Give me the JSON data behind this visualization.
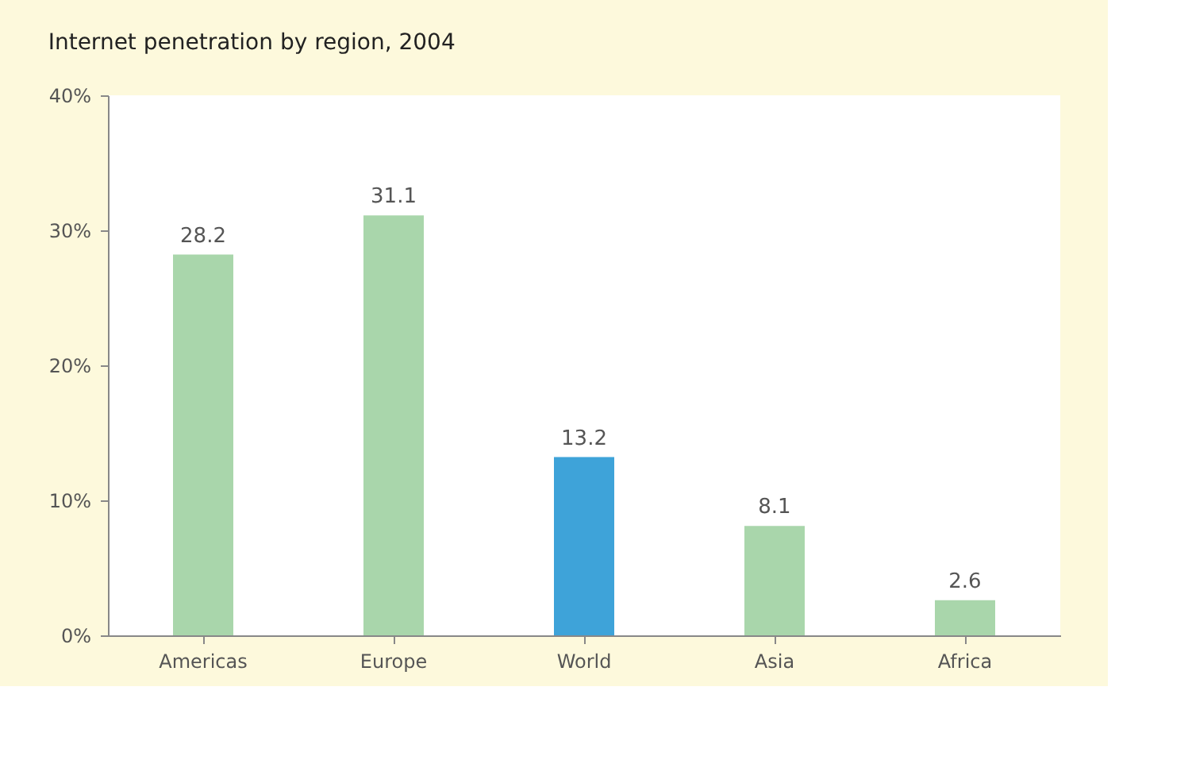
{
  "chart_data": {
    "type": "bar",
    "title": "Internet penetration by region, 2004",
    "categories": [
      "Americas",
      "Europe",
      "World",
      "Asia",
      "Africa"
    ],
    "values": [
      28.2,
      31.1,
      13.2,
      8.1,
      2.6
    ],
    "colors": [
      "#a9d6ab",
      "#a9d6ab",
      "#3ea3d9",
      "#a9d6ab",
      "#a9d6ab"
    ],
    "ylim": [
      0,
      40
    ],
    "yticks": [
      {
        "value": 0,
        "label": "0%"
      },
      {
        "value": 10,
        "label": "10%"
      },
      {
        "value": 20,
        "label": "20%"
      },
      {
        "value": 30,
        "label": "30%"
      },
      {
        "value": 40,
        "label": "40%"
      }
    ],
    "data_labels": true,
    "grid": false
  }
}
